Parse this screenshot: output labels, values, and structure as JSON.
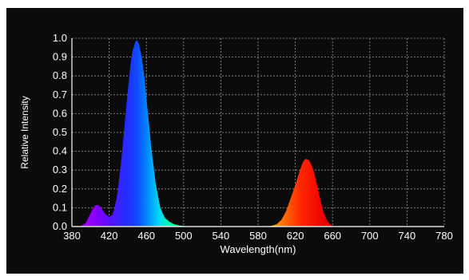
{
  "chart_data": {
    "type": "area",
    "title": "",
    "xlabel": "Wavelength(nm)",
    "ylabel": "Relative Intensity",
    "xlim": [
      380,
      780
    ],
    "ylim": [
      0,
      1.0
    ],
    "x_ticks": [
      380,
      420,
      460,
      500,
      540,
      580,
      620,
      660,
      700,
      740,
      780
    ],
    "y_ticks": [
      0.0,
      0.1,
      0.2,
      0.3,
      0.4,
      0.5,
      0.6,
      0.7,
      0.8,
      0.9,
      1.0
    ],
    "x_tick_labels": [
      "380",
      "420",
      "460",
      "500",
      "540",
      "580",
      "620",
      "660",
      "700",
      "740",
      "780"
    ],
    "y_tick_labels": [
      "0.0",
      "0.1",
      "0.2",
      "0.3",
      "0.4",
      "0.5",
      "0.6",
      "0.7",
      "0.8",
      "0.9",
      "1.0"
    ],
    "grid": true,
    "background": "#0b0b0b",
    "series": [
      {
        "fill": "spectral-gradient",
        "x": [
          380,
          385,
          390,
          395,
          400,
          403,
          405,
          408,
          410,
          413,
          415,
          418,
          420,
          423,
          425,
          428,
          430,
          433,
          435,
          438,
          440,
          443,
          445,
          448,
          450,
          452,
          455,
          458,
          460,
          463,
          465,
          468,
          470,
          473,
          475,
          478,
          480,
          485,
          490,
          495,
          500,
          505,
          510,
          520,
          540,
          560,
          580,
          590,
          595,
          600,
          605,
          610,
          615,
          620,
          625,
          628,
          630,
          632,
          635,
          638,
          640,
          643,
          645,
          648,
          650,
          653,
          655,
          658,
          660,
          663,
          665,
          670,
          680,
          700,
          740,
          780
        ],
        "y": [
          0.0,
          0.0,
          0.003,
          0.02,
          0.07,
          0.1,
          0.113,
          0.115,
          0.107,
          0.088,
          0.072,
          0.058,
          0.052,
          0.06,
          0.085,
          0.15,
          0.22,
          0.35,
          0.45,
          0.62,
          0.72,
          0.86,
          0.93,
          0.98,
          0.99,
          0.97,
          0.9,
          0.79,
          0.68,
          0.54,
          0.43,
          0.31,
          0.23,
          0.15,
          0.1,
          0.065,
          0.045,
          0.025,
          0.012,
          0.006,
          0.003,
          0.001,
          0.0,
          0.0,
          0.0,
          0.0,
          0.0,
          0.001,
          0.004,
          0.012,
          0.035,
          0.08,
          0.15,
          0.22,
          0.3,
          0.34,
          0.355,
          0.36,
          0.35,
          0.32,
          0.29,
          0.23,
          0.185,
          0.12,
          0.08,
          0.045,
          0.025,
          0.01,
          0.004,
          0.001,
          0.0,
          0.0,
          0.0,
          0.0,
          0.0,
          0.0
        ]
      }
    ]
  }
}
